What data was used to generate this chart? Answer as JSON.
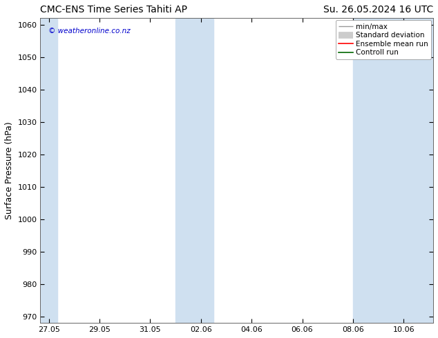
{
  "title_left": "CMC-ENS Time Series Tahiti AP",
  "title_right": "Su. 26.05.2024 16 UTC",
  "ylabel": "Surface Pressure (hPa)",
  "ylim": [
    968,
    1062
  ],
  "yticks": [
    970,
    980,
    990,
    1000,
    1010,
    1020,
    1030,
    1040,
    1050,
    1060
  ],
  "xtick_labels": [
    "27.05",
    "29.05",
    "31.05",
    "02.06",
    "04.06",
    "06.06",
    "08.06",
    "10.06"
  ],
  "shade_color": "#cfe0f0",
  "background_color": "#ffffff",
  "watermark": "© weatheronline.co.nz",
  "watermark_color": "#0000cc",
  "legend_items": [
    {
      "label": "min/max",
      "color": "#999999",
      "lw": 1.0
    },
    {
      "label": "Standard deviation",
      "color": "#cccccc",
      "lw": 6
    },
    {
      "label": "Ensemble mean run",
      "color": "#ff0000",
      "lw": 1.2
    },
    {
      "label": "Controll run",
      "color": "#006600",
      "lw": 1.2
    }
  ],
  "title_fontsize": 10,
  "tick_fontsize": 8,
  "ylabel_fontsize": 9,
  "legend_fontsize": 7.5
}
